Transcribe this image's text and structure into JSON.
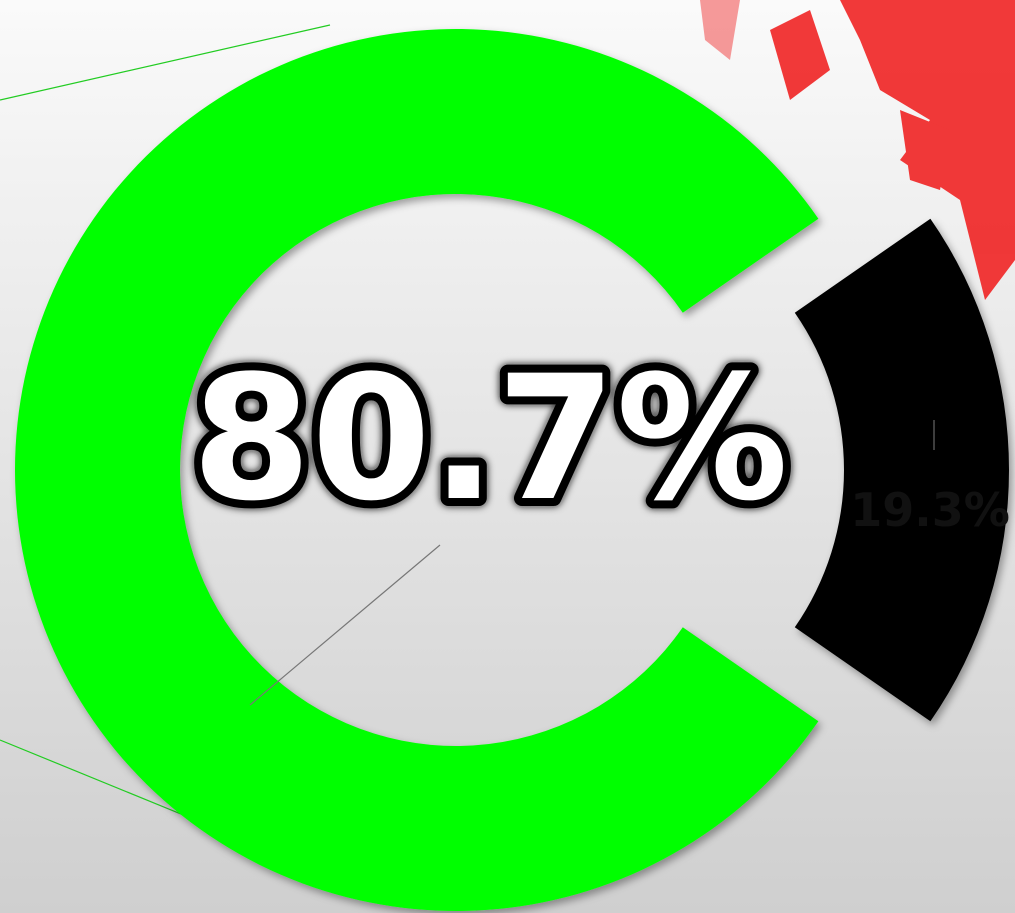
{
  "chart_data": {
    "type": "pie",
    "donut": true,
    "values": [
      80.7,
      19.3
    ],
    "value_labels": [
      "80.7%",
      "19.3%"
    ],
    "colors": [
      "#00ff00",
      "#000000"
    ],
    "explode": [
      false,
      true
    ]
  }
}
